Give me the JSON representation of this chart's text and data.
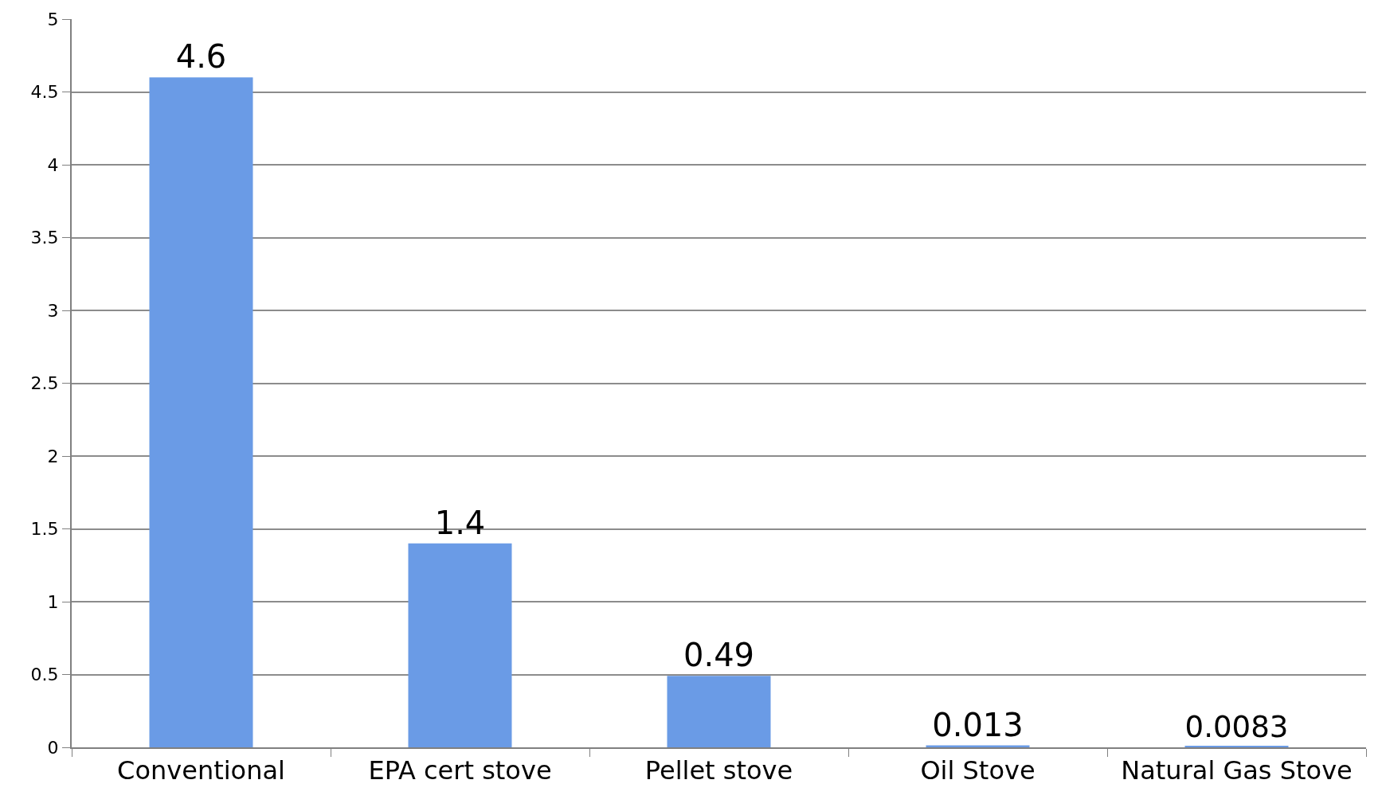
{
  "chart_data": {
    "type": "bar",
    "categories": [
      "Conventional",
      "EPA cert stove",
      "Pellet stove",
      "Oil Stove",
      "Natural Gas Stove"
    ],
    "values": [
      4.6,
      1.4,
      0.49,
      0.013,
      0.0083
    ],
    "color": "#6a9be6",
    "data_labels": true,
    "ylim": [
      0,
      5
    ],
    "yticks": [
      0,
      0.5,
      1,
      1.5,
      2,
      2.5,
      3,
      3.5,
      4,
      4.5,
      5
    ],
    "grid": "y",
    "legend": false
  }
}
